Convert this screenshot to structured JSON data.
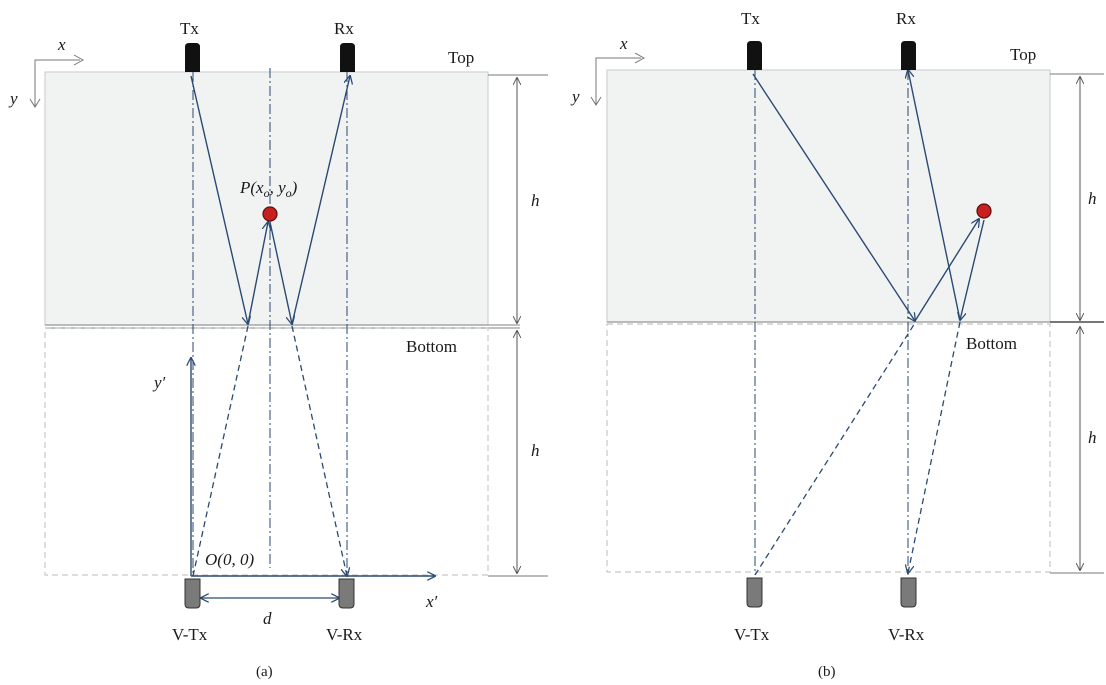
{
  "panel_a": {
    "label_top": "Top",
    "label_bottom": "Bottom",
    "tx": "Tx",
    "rx": "Rx",
    "vtx": "V-Tx",
    "vrx": "V-Rx",
    "axis_x": "x",
    "axis_y": "y",
    "axis_x_prime": "x′",
    "axis_y_prime": "y′",
    "origin": "O(0, 0)",
    "point_P": "P(x",
    "point_P_sub1": "o",
    "point_P_mid": ", y",
    "point_P_sub2": "o",
    "point_P_end": ")",
    "h_upper": "h",
    "h_lower": "h",
    "d": "d",
    "caption": "(a)"
  },
  "panel_b": {
    "label_top": "Top",
    "label_bottom": "Bottom",
    "tx": "Tx",
    "rx": "Rx",
    "vtx": "V-Tx",
    "vrx": "V-Rx",
    "axis_x": "x",
    "axis_y": "y",
    "h_upper": "h",
    "h_lower": "h",
    "caption": "(b)"
  },
  "colors": {
    "ray": "#2a4a72",
    "target": "#c8201e",
    "box_fill": "#f1f3f3",
    "antenna": "#111111",
    "virtual_antenna": "#7a7a7a"
  }
}
